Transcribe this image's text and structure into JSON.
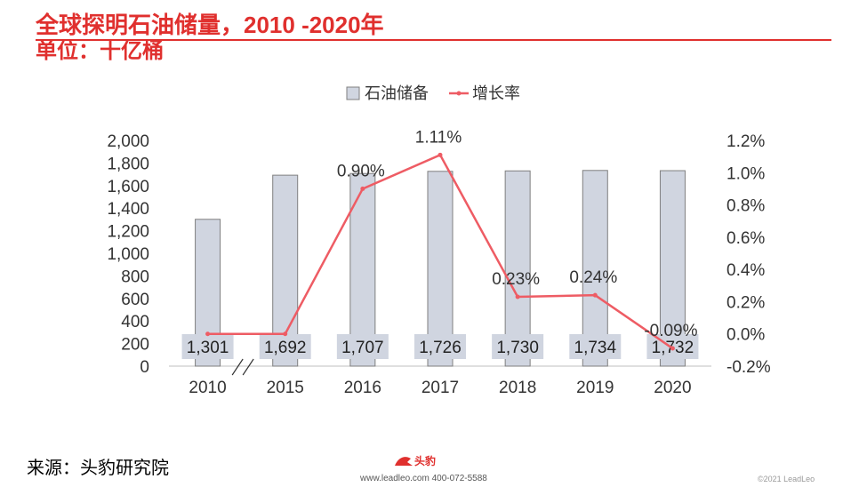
{
  "title": "全球探明石油储量，2010 -2020年",
  "subtitle": "单位：十亿桶",
  "chart_data": {
    "type": "bar",
    "categories": [
      "2010",
      "2015",
      "2016",
      "2017",
      "2018",
      "2019",
      "2020"
    ],
    "series": [
      {
        "name": "石油储备",
        "type": "bar",
        "values": [
          1301,
          1692,
          1707,
          1726,
          1730,
          1734,
          1732
        ],
        "labels": [
          "1,301",
          "1,692",
          "1,707",
          "1,726",
          "1,730",
          "1,734",
          "1,732"
        ],
        "color": "#d0d5e0"
      },
      {
        "name": "增长率",
        "type": "line",
        "axis": "right",
        "values": [
          0.0,
          0.0,
          0.9,
          1.11,
          0.23,
          0.24,
          -0.09
        ],
        "labels": [
          "",
          "",
          "0.90%",
          "1.11%",
          "0.23%",
          "0.24%",
          "-0.09%"
        ],
        "color": "#ee5c64"
      }
    ],
    "ylim": [
      0,
      2000
    ],
    "yticks": [
      "2,000",
      "1,800",
      "1,600",
      "1,400",
      "1,200",
      "1,000",
      "800",
      "600",
      "400",
      "200",
      "0"
    ],
    "y2lim": [
      -0.2,
      1.2
    ],
    "y2ticks": [
      "1.2%",
      "1.0%",
      "0.8%",
      "0.6%",
      "0.4%",
      "0.2%",
      "0.0%",
      "-0.2%"
    ],
    "legend": "top-center",
    "grid": false
  },
  "footer": {
    "source": "来源：头豹研究院",
    "logo_text": "头豹",
    "contact": "www.leadleo.com  400-072-5588",
    "copyright": "©2021 LeadLeo"
  },
  "colors": {
    "accent": "#e0302e",
    "bar": "#d0d5e0",
    "line": "#ee5c64"
  }
}
